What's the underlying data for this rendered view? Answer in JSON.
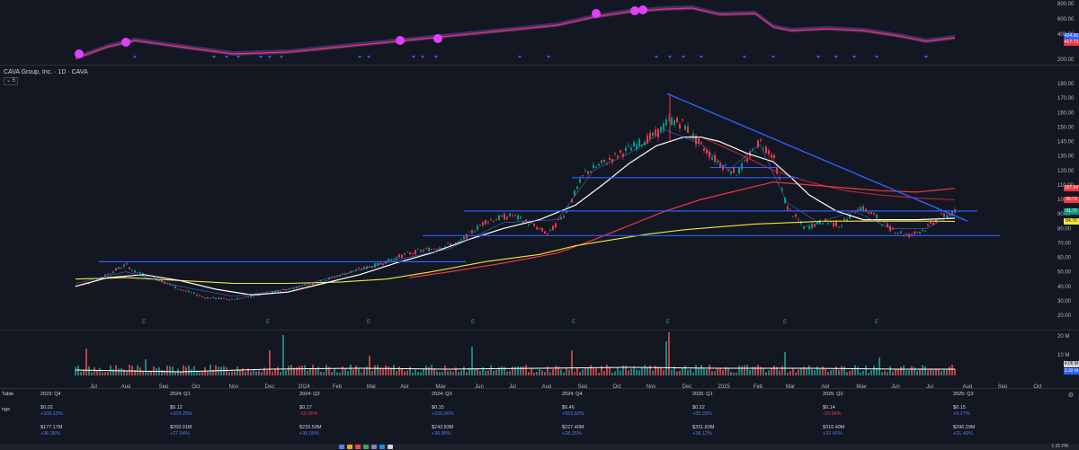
{
  "header": {
    "symbol_title": "CAVA Group, Inc. · 1D · CAVA",
    "collapse_label": "⌄ 5"
  },
  "top_pane": {
    "price_labels": [
      "800.00",
      "600.00",
      "400.00",
      "200.00"
    ],
    "price_tags": [
      {
        "label": "434.00",
        "color": "#2962ff"
      },
      {
        "label": "417.73",
        "color": "#f23645"
      }
    ]
  },
  "main_pane": {
    "price_labels": [
      "180.00",
      "170.00",
      "160.00",
      "150.00",
      "140.00",
      "130.00",
      "120.00",
      "110.00",
      "100.00",
      "90.00",
      "80.00",
      "70.00",
      "60.00",
      "50.00",
      "40.00",
      "30.00",
      "20.00"
    ],
    "price_tags": [
      {
        "label": "107.64",
        "color": "#f23645",
        "price": 107.64
      },
      {
        "label": "99.73",
        "color": "#f23645",
        "price": 99.73
      },
      {
        "label": "91.72",
        "color": "#089981",
        "price": 91.72
      },
      {
        "label": "84.76",
        "color": "#f5e63b",
        "price": 84.76
      }
    ],
    "earnings_marker": "E"
  },
  "volume_pane": {
    "labels": [
      "20 M",
      "10 M"
    ],
    "volume_tags": [
      {
        "label": "4.06 M",
        "color": "#d1d4dc"
      },
      {
        "label": "3.32 M",
        "color": "#2962ff"
      }
    ]
  },
  "date_axis": [
    "Jul",
    "Aug",
    "Sep",
    "Oct",
    "Nov",
    "Dec",
    "2024",
    "Feb",
    "Mar",
    "Apr",
    "May",
    "Jun",
    "Jul",
    "Aug",
    "Sep",
    "Oct",
    "Nov",
    "Dec",
    "2025",
    "Feb",
    "Mar",
    "Apr",
    "May",
    "Jun",
    "Jul",
    "Aug",
    "Sep",
    "Oct"
  ],
  "fin_table": {
    "title": "Table",
    "row_label": "ngs",
    "columns": [
      {
        "period": "2023: Q4",
        "eps": "$0.02",
        "eps_chg": "+100.15%",
        "rev": "$177.17M",
        "rev_chg": "+36.35%"
      },
      {
        "period": "2024: Q1",
        "eps": "$0.12",
        "eps_chg": "+109.25%",
        "rev": "$259.01M",
        "rev_chg": "+27.54%"
      },
      {
        "period": "2024: Q2",
        "eps": "$0.17",
        "eps_chg": "-19.05%",
        "rev": "$233.50M",
        "rev_chg": "+35.05%"
      },
      {
        "period": "2024: Q3",
        "eps": "$0.15",
        "eps_chg": "+150.00%",
        "rev": "$243.83M",
        "rev_chg": "+35.85%"
      },
      {
        "period": "2024: Q4",
        "eps": "$0.46",
        "eps_chg": "+553.82%",
        "rev": "$227.40M",
        "rev_chg": "+28.35%"
      },
      {
        "period": "2025: Q1",
        "eps": "$0.22",
        "eps_chg": "+83.33%",
        "rev": "$331.83M",
        "rev_chg": "+28.12%"
      },
      {
        "period": "2025: Q2",
        "eps": "$0.14",
        "eps_chg": "-19.54%",
        "rev": "$316.49M",
        "rev_chg": "+22.66%"
      },
      {
        "period": "2025: Q3",
        "eps": "$0.15",
        "eps_chg": "+0.17%",
        "rev": "$296.29M",
        "rev_chg": "+21.49%"
      }
    ]
  },
  "taskbar": {
    "time": "1:35 PM"
  },
  "colors": {
    "background": "#131722",
    "trendline": "#2962ff",
    "ma_white": "#ffffff",
    "ma_yellow": "#f5e63b",
    "ma_red": "#f23645",
    "up_candle": "#089981",
    "down_candle": "#f23645",
    "signal_dot": "#e040fb"
  }
}
